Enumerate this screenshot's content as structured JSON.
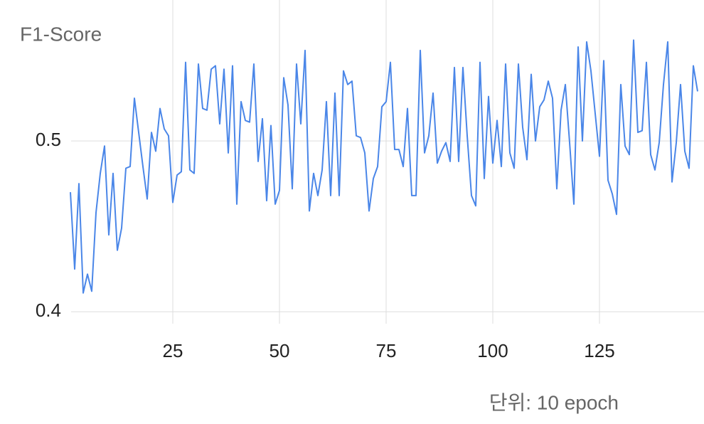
{
  "chart_data": {
    "type": "line",
    "y_axis_label": "F1-Score",
    "x_axis_label": "단위: 10 epoch",
    "x": [
      1,
      2,
      3,
      4,
      5,
      6,
      7,
      8,
      9,
      10,
      11,
      12,
      13,
      14,
      15,
      16,
      17,
      18,
      19,
      20,
      21,
      22,
      23,
      24,
      25,
      26,
      27,
      28,
      29,
      30,
      31,
      32,
      33,
      34,
      35,
      36,
      37,
      38,
      39,
      40,
      41,
      42,
      43,
      44,
      45,
      46,
      47,
      48,
      49,
      50,
      51,
      52,
      53,
      54,
      55,
      56,
      57,
      58,
      59,
      60,
      61,
      62,
      63,
      64,
      65,
      66,
      67,
      68,
      69,
      70,
      71,
      72,
      73,
      74,
      75,
      76,
      77,
      78,
      79,
      80,
      81,
      82,
      83,
      84,
      85,
      86,
      87,
      88,
      89,
      90,
      91,
      92,
      93,
      94,
      95,
      96,
      97,
      98,
      99,
      100,
      101,
      102,
      103,
      104,
      105,
      106,
      107,
      108,
      109,
      110,
      111,
      112,
      113,
      114,
      115,
      116,
      117,
      118,
      119,
      120,
      121,
      122,
      123,
      124,
      125,
      126,
      127,
      128,
      129,
      130,
      131,
      132,
      133,
      134,
      135,
      136,
      137,
      138,
      139,
      140,
      141,
      142,
      143,
      144,
      145,
      146,
      147,
      148
    ],
    "series": [
      {
        "name": "F1-Score",
        "color": "#4a86e8",
        "values": [
          0.47,
          0.425,
          0.475,
          0.411,
          0.422,
          0.412,
          0.458,
          0.481,
          0.497,
          0.445,
          0.481,
          0.436,
          0.449,
          0.484,
          0.485,
          0.525,
          0.505,
          0.485,
          0.466,
          0.505,
          0.494,
          0.519,
          0.507,
          0.503,
          0.464,
          0.48,
          0.482,
          0.546,
          0.483,
          0.481,
          0.545,
          0.519,
          0.518,
          0.542,
          0.544,
          0.51,
          0.542,
          0.493,
          0.544,
          0.463,
          0.523,
          0.512,
          0.511,
          0.545,
          0.488,
          0.513,
          0.465,
          0.509,
          0.463,
          0.471,
          0.537,
          0.521,
          0.472,
          0.545,
          0.51,
          0.553,
          0.459,
          0.481,
          0.468,
          0.483,
          0.523,
          0.468,
          0.528,
          0.468,
          0.541,
          0.533,
          0.535,
          0.503,
          0.502,
          0.493,
          0.459,
          0.478,
          0.485,
          0.52,
          0.523,
          0.546,
          0.495,
          0.495,
          0.485,
          0.519,
          0.468,
          0.468,
          0.553,
          0.493,
          0.503,
          0.528,
          0.487,
          0.494,
          0.499,
          0.488,
          0.543,
          0.488,
          0.543,
          0.503,
          0.468,
          0.462,
          0.546,
          0.478,
          0.526,
          0.487,
          0.512,
          0.485,
          0.545,
          0.493,
          0.484,
          0.545,
          0.508,
          0.489,
          0.539,
          0.5,
          0.52,
          0.524,
          0.535,
          0.525,
          0.472,
          0.518,
          0.533,
          0.499,
          0.463,
          0.555,
          0.5,
          0.558,
          0.541,
          0.516,
          0.491,
          0.547,
          0.477,
          0.469,
          0.457,
          0.533,
          0.497,
          0.492,
          0.559,
          0.505,
          0.506,
          0.546,
          0.492,
          0.483,
          0.499,
          0.533,
          0.558,
          0.476,
          0.499,
          0.533,
          0.494,
          0.484,
          0.544,
          0.529
        ]
      }
    ],
    "xlim": [
      0,
      149.5
    ],
    "xticks": [
      25,
      50,
      75,
      100,
      125
    ],
    "ylim": [
      0.393,
      0.5825
    ],
    "yticks": [
      0.4,
      0.5
    ],
    "grid": true
  }
}
